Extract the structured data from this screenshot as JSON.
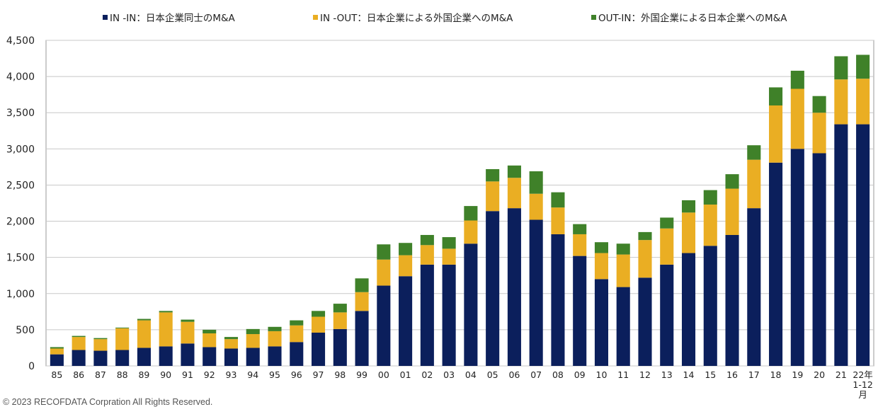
{
  "chart_data": {
    "type": "bar",
    "stacked": true,
    "categories": [
      "85",
      "86",
      "87",
      "88",
      "89",
      "90",
      "91",
      "92",
      "93",
      "94",
      "95",
      "96",
      "97",
      "98",
      "99",
      "00",
      "01",
      "02",
      "03",
      "04",
      "05",
      "06",
      "07",
      "08",
      "09",
      "10",
      "11",
      "12",
      "13",
      "14",
      "15",
      "16",
      "17",
      "18",
      "19",
      "20",
      "21",
      "22年 1-12 月"
    ],
    "series": [
      {
        "name": "IN -IN：日本企業同士のM&A",
        "color": "#0b1f5c",
        "values": [
          160,
          220,
          210,
          220,
          250,
          270,
          310,
          260,
          240,
          250,
          270,
          330,
          460,
          510,
          760,
          1110,
          1240,
          1400,
          1400,
          1690,
          2140,
          2180,
          2020,
          1820,
          1520,
          1200,
          1090,
          1220,
          1400,
          1560,
          1660,
          1810,
          2180,
          2810,
          3000,
          2940,
          3340,
          3340
        ]
      },
      {
        "name": "IN -OUT：日本企業による外国企業へのM&A",
        "color": "#eaae23",
        "values": [
          80,
          180,
          160,
          300,
          380,
          470,
          300,
          190,
          130,
          190,
          210,
          230,
          220,
          230,
          260,
          360,
          290,
          270,
          220,
          320,
          410,
          420,
          360,
          370,
          300,
          360,
          450,
          520,
          500,
          560,
          570,
          640,
          670,
          790,
          830,
          560,
          620,
          630
        ]
      },
      {
        "name": "OUT-IN：外国企業による日本企業へのM&A",
        "color": "#3f8129",
        "values": [
          20,
          15,
          15,
          10,
          20,
          20,
          30,
          50,
          30,
          70,
          60,
          70,
          80,
          120,
          190,
          210,
          170,
          140,
          160,
          200,
          170,
          170,
          310,
          210,
          140,
          150,
          150,
          110,
          150,
          170,
          200,
          200,
          200,
          250,
          250,
          230,
          320,
          330
        ]
      }
    ],
    "yticks": [
      "0",
      "500",
      "1,000",
      "1,500",
      "2,000",
      "2,500",
      "3,000",
      "3,500",
      "4,000",
      "4,500"
    ],
    "ylim": [
      0,
      4500
    ],
    "grid": true,
    "legend_position": "top"
  },
  "footer": {
    "copyright": "© 2023 RECOFDATA Corpration All Rights Reserved."
  }
}
